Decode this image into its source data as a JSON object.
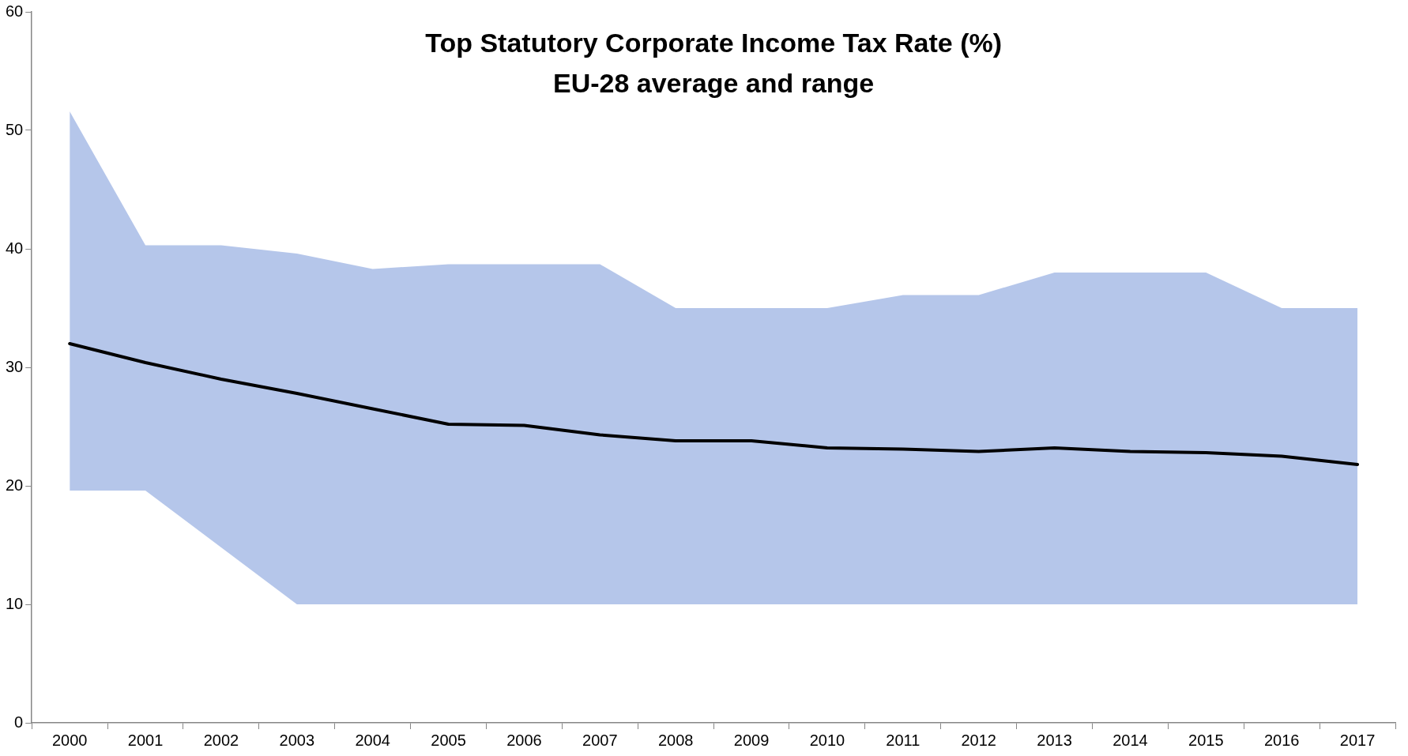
{
  "chart_data": {
    "type": "line",
    "title": "Top Statutory Corporate Income Tax Rate (%)",
    "subtitle": "EU-28 average and range",
    "categories": [
      "2000",
      "2001",
      "2002",
      "2003",
      "2004",
      "2005",
      "2006",
      "2007",
      "2008",
      "2009",
      "2010",
      "2011",
      "2012",
      "2013",
      "2014",
      "2015",
      "2016",
      "2017"
    ],
    "series": [
      {
        "color": "#000000",
        "values": [
          32.0,
          30.4,
          29.0,
          27.8,
          26.5,
          25.2,
          25.1,
          24.3,
          23.8,
          23.8,
          23.2,
          23.1,
          22.9,
          23.2,
          22.9,
          22.8,
          22.5,
          21.8
        ],
        "lower": [
          19.6,
          19.6,
          14.8,
          10,
          10,
          10,
          10,
          10,
          10,
          10,
          10,
          10,
          10,
          10,
          10,
          10,
          10,
          10
        ],
        "upper": [
          51.6,
          40.3,
          40.3,
          39.6,
          38.3,
          38.7,
          38.7,
          38.7,
          35,
          35,
          35,
          36.1,
          36.1,
          38,
          38,
          38,
          35,
          35
        ]
      }
    ],
    "ylim": [
      0,
      60
    ],
    "yticks": [
      0,
      10,
      20,
      30,
      40,
      50,
      60
    ],
    "grid": false,
    "legend": false,
    "marker": "none",
    "line_style": "solid"
  }
}
